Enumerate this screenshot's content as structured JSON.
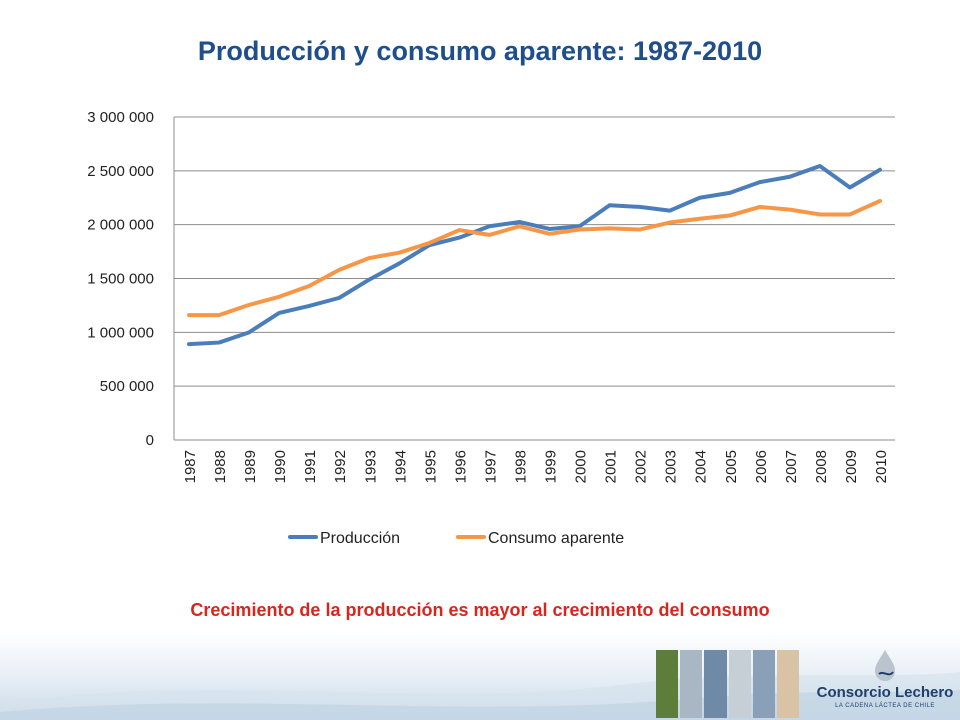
{
  "slide": {
    "title": "Producción y consumo aparente: 1987-2010",
    "subtitle": "Crecimiento de la producción es mayor al crecimiento del consumo"
  },
  "chart_data": {
    "type": "line",
    "title": "",
    "xlabel": "",
    "ylabel": "",
    "categories": [
      "1987",
      "1988",
      "1989",
      "1990",
      "1991",
      "1992",
      "1993",
      "1994",
      "1995",
      "1996",
      "1997",
      "1998",
      "1999",
      "2000",
      "2001",
      "2002",
      "2003",
      "2004",
      "2005",
      "2006",
      "2007",
      "2008",
      "2009",
      "2010"
    ],
    "ylim": [
      0,
      3000000
    ],
    "yticks": [
      0,
      500000,
      1000000,
      1500000,
      2000000,
      2500000,
      3000000
    ],
    "ytick_labels": [
      "0",
      "500 000",
      "1 000 000",
      "1 500 000",
      "2 000 000",
      "2 500 000",
      "3 000 000"
    ],
    "grid": true,
    "legend_position": "bottom",
    "series": [
      {
        "name": "Producción",
        "color": "#4a7ebb",
        "values": [
          890000,
          905000,
          1000000,
          1180000,
          1245000,
          1320000,
          1490000,
          1640000,
          1810000,
          1880000,
          1985000,
          2025000,
          1960000,
          1985000,
          2180000,
          2165000,
          2130000,
          2250000,
          2295000,
          2395000,
          2445000,
          2545000,
          2345000,
          2510000
        ]
      },
      {
        "name": "Consumo aparente",
        "color": "#f79646",
        "values": [
          1160000,
          1160000,
          1255000,
          1330000,
          1430000,
          1580000,
          1690000,
          1740000,
          1830000,
          1950000,
          1905000,
          1985000,
          1915000,
          1955000,
          1965000,
          1955000,
          2020000,
          2055000,
          2085000,
          2165000,
          2140000,
          2095000,
          2095000,
          2220000
        ]
      }
    ]
  },
  "footer": {
    "logo_name": "Consorcio Lechero",
    "logo_tagline": "LA CADENA LÁCTEA DE CHILE",
    "logo_icon": "milk-drop-icon",
    "photo_strip_colors": [
      "#5d7d3a",
      "#a9b7c4",
      "#6e8aa6",
      "#c7cfd6",
      "#8aa0b8",
      "#d9c3a5"
    ]
  }
}
